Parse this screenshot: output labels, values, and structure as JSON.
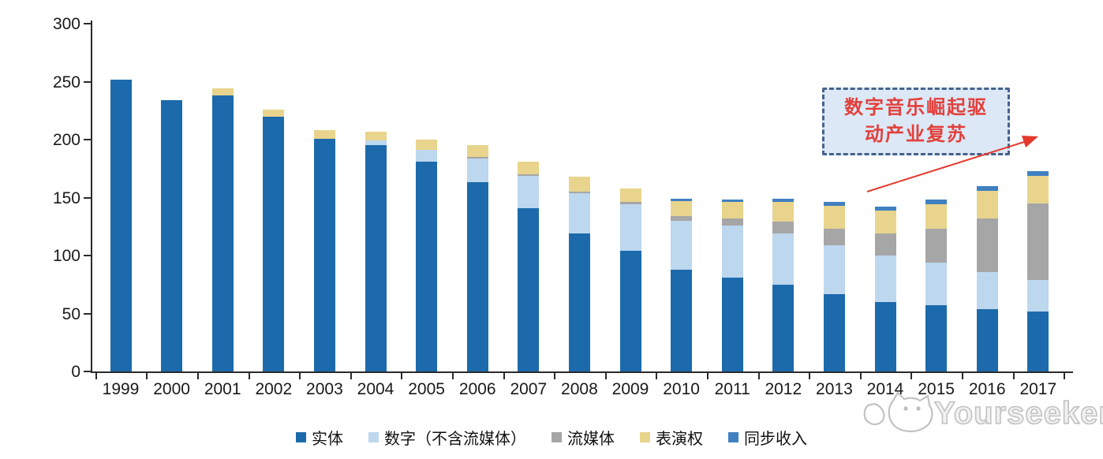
{
  "chart_data": {
    "type": "bar",
    "stacked": true,
    "title": "",
    "xlabel": "",
    "ylabel": "",
    "ylim": [
      0,
      300
    ],
    "yticks": [
      0,
      50,
      100,
      150,
      200,
      250,
      300
    ],
    "grid": false,
    "legend_position": "bottom",
    "categories": [
      "1999",
      "2000",
      "2001",
      "2002",
      "2003",
      "2004",
      "2005",
      "2006",
      "2007",
      "2008",
      "2009",
      "2010",
      "2011",
      "2012",
      "2013",
      "2014",
      "2015",
      "2016",
      "2017"
    ],
    "series": [
      {
        "name": "实体",
        "color": "#1C6AAC",
        "values": [
          252,
          234,
          238,
          220,
          201,
          195,
          181,
          163,
          141,
          119,
          104,
          88,
          81,
          75,
          67,
          60,
          57,
          54,
          52
        ]
      },
      {
        "name": "数字（不含流媒体）",
        "color": "#BDD7EE",
        "values": [
          0,
          0,
          0,
          0,
          0,
          4,
          10,
          21,
          28,
          35,
          40,
          42,
          45,
          44,
          42,
          40,
          37,
          32,
          27
        ]
      },
      {
        "name": "流媒体",
        "color": "#A6A6A6",
        "values": [
          0,
          0,
          0,
          0,
          0,
          0,
          0,
          1,
          1,
          1,
          2,
          4,
          6,
          10,
          14,
          19,
          29,
          46,
          66
        ]
      },
      {
        "name": "表演权",
        "color": "#E8D48C",
        "values": [
          0,
          0,
          6,
          6,
          7,
          8,
          9,
          10,
          11,
          13,
          12,
          13,
          14,
          17,
          20,
          20,
          21,
          24,
          24
        ]
      },
      {
        "name": "同步收入",
        "color": "#4080C1",
        "values": [
          0,
          0,
          0,
          0,
          0,
          0,
          0,
          0,
          0,
          0,
          0,
          2,
          2,
          3,
          3,
          3,
          4,
          4,
          4
        ]
      }
    ]
  },
  "annotation": {
    "line1": "数字音乐崛起驱",
    "line2": "动产业复苏",
    "text_color": "#e2403c",
    "box_fill": "#dce8f5",
    "border_color": "#47618c",
    "arrow_color": "#e5392e"
  },
  "watermark": {
    "text": "Yourseeker"
  }
}
